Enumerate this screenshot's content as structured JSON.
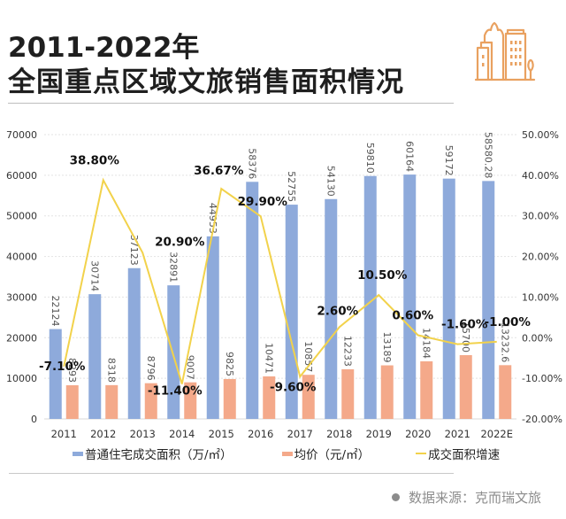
{
  "header": {
    "title_line1": "2011-2022年",
    "title_line2": "全国重点区域文旅销售面积情况",
    "logo_icon": "city-buildings-icon"
  },
  "footer": {
    "source": "数据来源：克而瑞文旅"
  },
  "colors": {
    "area_bar": "#8eaadb",
    "price_bar": "#f4a98a",
    "growth_line": "#f2d24b",
    "logo": "#e9a160"
  },
  "chart_data": {
    "type": "bar",
    "title": "2011-2022年 全国重点区域文旅销售面积情况",
    "categories": [
      "2011",
      "2012",
      "2013",
      "2014",
      "2015",
      "2016",
      "2017",
      "2018",
      "2019",
      "2020",
      "2021",
      "2022E"
    ],
    "series": [
      {
        "name": "普通住宅成交面积（万/㎡）",
        "type": "bar",
        "axis": "left",
        "values": [
          22124,
          30714,
          37123,
          32891,
          44953,
          58376,
          52755,
          54130,
          59810,
          60164,
          59172,
          58580.28
        ],
        "labels": [
          "22124",
          "30714",
          "37123",
          "32891",
          "44953",
          "58376",
          "52755",
          "54130",
          "59810",
          "60164",
          "59172",
          "58580.28"
        ]
      },
      {
        "name": "均价（元/㎡）",
        "type": "bar",
        "axis": "left",
        "values": [
          8293,
          8318,
          8796,
          9007,
          9825,
          10471,
          10857,
          12233,
          13189,
          14184,
          15700,
          13232.6
        ],
        "labels": [
          "8293",
          "8318",
          "8796",
          "9007",
          "9825",
          "10471",
          "10857",
          "12233",
          "13189",
          "14184",
          "15700",
          "13232.6"
        ]
      },
      {
        "name": "成交面积增速",
        "type": "line",
        "axis": "right",
        "values": [
          -7.1,
          38.8,
          20.9,
          -11.4,
          36.67,
          29.9,
          -9.6,
          2.6,
          10.5,
          0.6,
          -1.6,
          -1.0
        ],
        "labels": [
          "-7.10%",
          "38.80%",
          "20.90%",
          "-11.40%",
          "36.67%",
          "29.90%",
          "-9.60%",
          "2.60%",
          "10.50%",
          "0.60%",
          "-1.60%",
          "-1.00%"
        ]
      }
    ],
    "left_axis": {
      "ylim": [
        0,
        70000
      ],
      "ticks": [
        "0",
        "10000",
        "20000",
        "30000",
        "40000",
        "50000",
        "60000",
        "70000"
      ]
    },
    "right_axis": {
      "ylim": [
        -20,
        50
      ],
      "ticks": [
        "-20.00%",
        "-10.00%",
        "0.00%",
        "10.00%",
        "20.00%",
        "30.00%",
        "40.00%",
        "50.00%"
      ]
    },
    "grid": true,
    "legend_position": "bottom",
    "xlabel": "",
    "ylabel": ""
  }
}
